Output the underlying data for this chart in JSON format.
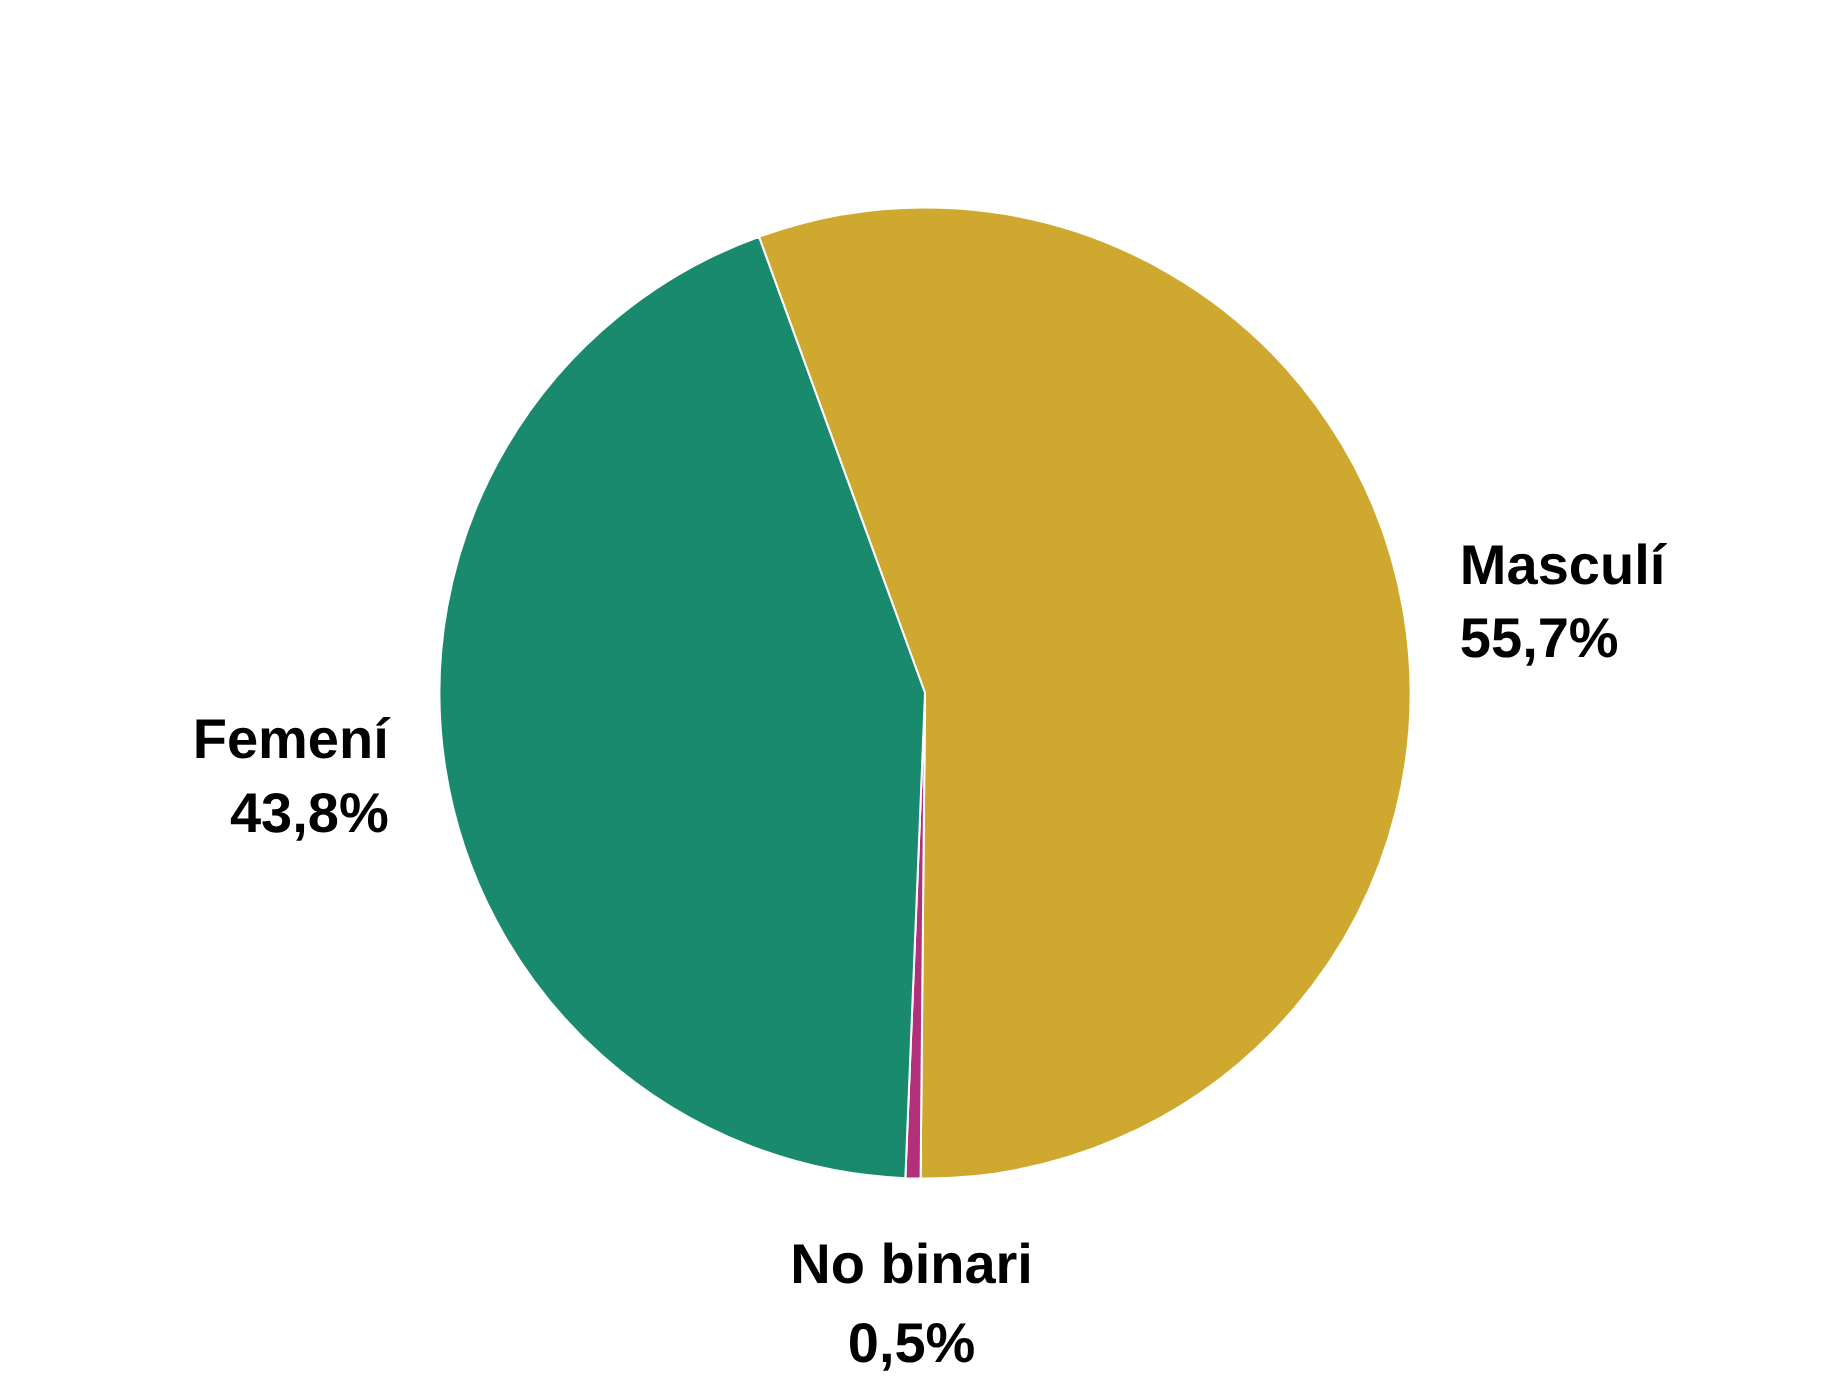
{
  "chart_data": {
    "type": "pie",
    "categories": [
      "Masculí",
      "No binari",
      "Femení"
    ],
    "values": [
      55.7,
      0.5,
      43.8
    ],
    "colors": [
      "#cfa92f",
      "#b0307a",
      "#1a8a6e"
    ],
    "value_labels": [
      "55,7%",
      "0,5%",
      "43,8%"
    ]
  }
}
